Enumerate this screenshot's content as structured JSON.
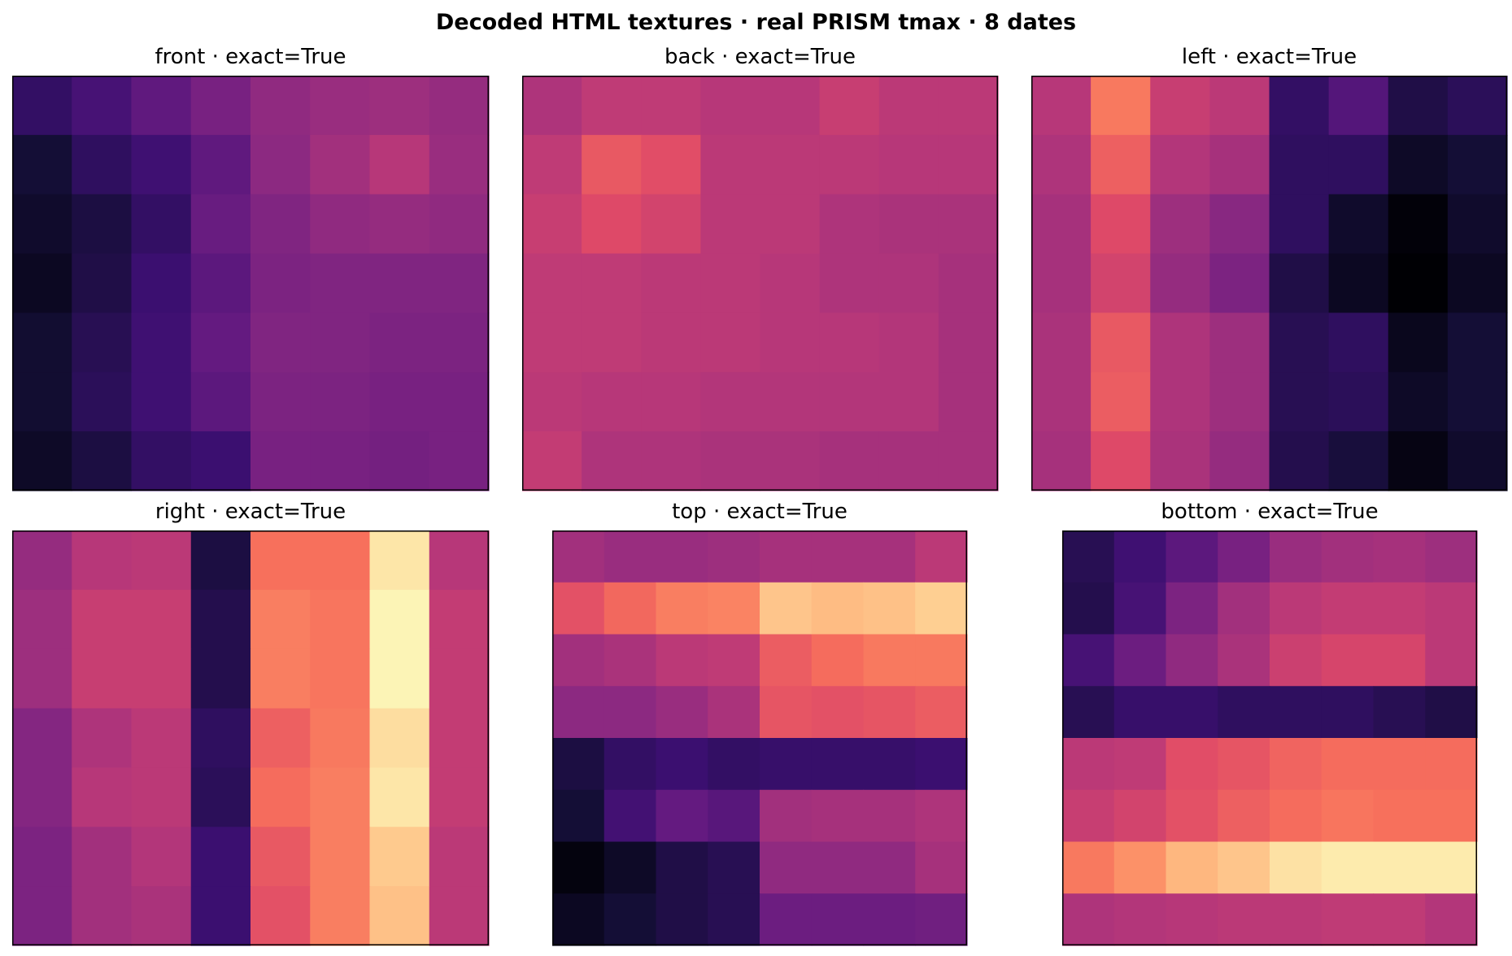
{
  "figure": {
    "suptitle": "Decoded HTML textures · real PRISM tmax · 8 dates"
  },
  "chart_data": [
    {
      "type": "heatmap",
      "title": "front · exact=True",
      "colormap": "magma",
      "rows": 7,
      "cols": 8,
      "axes_visible": false,
      "values": [
        [
          0.18,
          0.23,
          0.29,
          0.35,
          0.41,
          0.43,
          0.44,
          0.42
        ],
        [
          0.1,
          0.17,
          0.21,
          0.29,
          0.4,
          0.45,
          0.5,
          0.43
        ],
        [
          0.08,
          0.12,
          0.18,
          0.31,
          0.37,
          0.41,
          0.42,
          0.41
        ],
        [
          0.06,
          0.13,
          0.2,
          0.28,
          0.36,
          0.37,
          0.37,
          0.37
        ],
        [
          0.09,
          0.15,
          0.21,
          0.3,
          0.37,
          0.37,
          0.36,
          0.36
        ],
        [
          0.09,
          0.16,
          0.21,
          0.28,
          0.36,
          0.36,
          0.35,
          0.35
        ],
        [
          0.07,
          0.12,
          0.18,
          0.2,
          0.35,
          0.35,
          0.34,
          0.35
        ]
      ]
    },
    {
      "type": "heatmap",
      "title": "back · exact=True",
      "colormap": "magma",
      "rows": 7,
      "cols": 8,
      "axes_visible": false,
      "values": [
        [
          0.48,
          0.52,
          0.52,
          0.5,
          0.5,
          0.54,
          0.51,
          0.51
        ],
        [
          0.52,
          0.64,
          0.61,
          0.51,
          0.51,
          0.51,
          0.5,
          0.5
        ],
        [
          0.54,
          0.6,
          0.57,
          0.51,
          0.51,
          0.48,
          0.47,
          0.47
        ],
        [
          0.52,
          0.52,
          0.51,
          0.51,
          0.5,
          0.48,
          0.48,
          0.46
        ],
        [
          0.52,
          0.52,
          0.51,
          0.51,
          0.5,
          0.5,
          0.49,
          0.46
        ],
        [
          0.51,
          0.5,
          0.5,
          0.49,
          0.49,
          0.49,
          0.49,
          0.46
        ],
        [
          0.53,
          0.48,
          0.48,
          0.47,
          0.47,
          0.46,
          0.46,
          0.46
        ]
      ]
    },
    {
      "type": "heatmap",
      "title": "left · exact=True",
      "colormap": "magma",
      "rows": 7,
      "cols": 8,
      "axes_visible": false,
      "values": [
        [
          0.5,
          0.72,
          0.54,
          0.51,
          0.18,
          0.26,
          0.13,
          0.16
        ],
        [
          0.48,
          0.66,
          0.49,
          0.46,
          0.17,
          0.17,
          0.07,
          0.1
        ],
        [
          0.46,
          0.6,
          0.44,
          0.39,
          0.17,
          0.08,
          0.01,
          0.08
        ],
        [
          0.46,
          0.57,
          0.42,
          0.36,
          0.13,
          0.06,
          0.0,
          0.06
        ],
        [
          0.47,
          0.64,
          0.48,
          0.44,
          0.15,
          0.17,
          0.05,
          0.1
        ],
        [
          0.47,
          0.65,
          0.48,
          0.44,
          0.15,
          0.16,
          0.07,
          0.1
        ],
        [
          0.46,
          0.6,
          0.47,
          0.42,
          0.14,
          0.11,
          0.03,
          0.08
        ]
      ]
    },
    {
      "type": "heatmap",
      "title": "right · exact=True",
      "colormap": "magma",
      "rows": 7,
      "cols": 8,
      "axes_visible": false,
      "values": [
        [
          0.42,
          0.5,
          0.51,
          0.12,
          0.7,
          0.7,
          0.95,
          0.5
        ],
        [
          0.44,
          0.54,
          0.54,
          0.14,
          0.73,
          0.71,
          0.98,
          0.53
        ],
        [
          0.44,
          0.54,
          0.54,
          0.14,
          0.73,
          0.71,
          0.98,
          0.53
        ],
        [
          0.38,
          0.48,
          0.51,
          0.17,
          0.66,
          0.72,
          0.93,
          0.53
        ],
        [
          0.38,
          0.5,
          0.51,
          0.16,
          0.69,
          0.73,
          0.95,
          0.53
        ],
        [
          0.36,
          0.45,
          0.49,
          0.2,
          0.64,
          0.73,
          0.89,
          0.51
        ],
        [
          0.36,
          0.45,
          0.47,
          0.2,
          0.62,
          0.73,
          0.87,
          0.51
        ]
      ]
    },
    {
      "type": "heatmap",
      "title": "top · exact=True",
      "colormap": "magma",
      "rows": 8,
      "cols": 8,
      "axes_visible": false,
      "values": [
        [
          0.45,
          0.43,
          0.43,
          0.44,
          0.46,
          0.46,
          0.46,
          0.51
        ],
        [
          0.62,
          0.68,
          0.73,
          0.74,
          0.88,
          0.86,
          0.87,
          0.9
        ],
        [
          0.45,
          0.47,
          0.51,
          0.52,
          0.65,
          0.69,
          0.72,
          0.72
        ],
        [
          0.4,
          0.4,
          0.43,
          0.47,
          0.63,
          0.62,
          0.63,
          0.65
        ],
        [
          0.12,
          0.18,
          0.2,
          0.18,
          0.19,
          0.19,
          0.19,
          0.2
        ],
        [
          0.1,
          0.22,
          0.3,
          0.27,
          0.45,
          0.46,
          0.46,
          0.48
        ],
        [
          0.02,
          0.07,
          0.13,
          0.15,
          0.41,
          0.41,
          0.41,
          0.46
        ],
        [
          0.06,
          0.1,
          0.13,
          0.15,
          0.32,
          0.32,
          0.32,
          0.33
        ]
      ]
    },
    {
      "type": "heatmap",
      "title": "bottom · exact=True",
      "colormap": "magma",
      "rows": 8,
      "cols": 8,
      "axes_visible": false,
      "values": [
        [
          0.15,
          0.21,
          0.28,
          0.35,
          0.43,
          0.45,
          0.46,
          0.44
        ],
        [
          0.14,
          0.23,
          0.36,
          0.45,
          0.51,
          0.53,
          0.53,
          0.51
        ],
        [
          0.23,
          0.32,
          0.41,
          0.47,
          0.55,
          0.58,
          0.58,
          0.51
        ],
        [
          0.15,
          0.19,
          0.19,
          0.17,
          0.17,
          0.17,
          0.15,
          0.13
        ],
        [
          0.51,
          0.52,
          0.61,
          0.63,
          0.67,
          0.69,
          0.69,
          0.69
        ],
        [
          0.54,
          0.57,
          0.62,
          0.66,
          0.69,
          0.71,
          0.7,
          0.7
        ],
        [
          0.72,
          0.77,
          0.85,
          0.88,
          0.94,
          0.96,
          0.96,
          0.96
        ],
        [
          0.48,
          0.49,
          0.5,
          0.51,
          0.51,
          0.52,
          0.52,
          0.49
        ]
      ]
    }
  ]
}
